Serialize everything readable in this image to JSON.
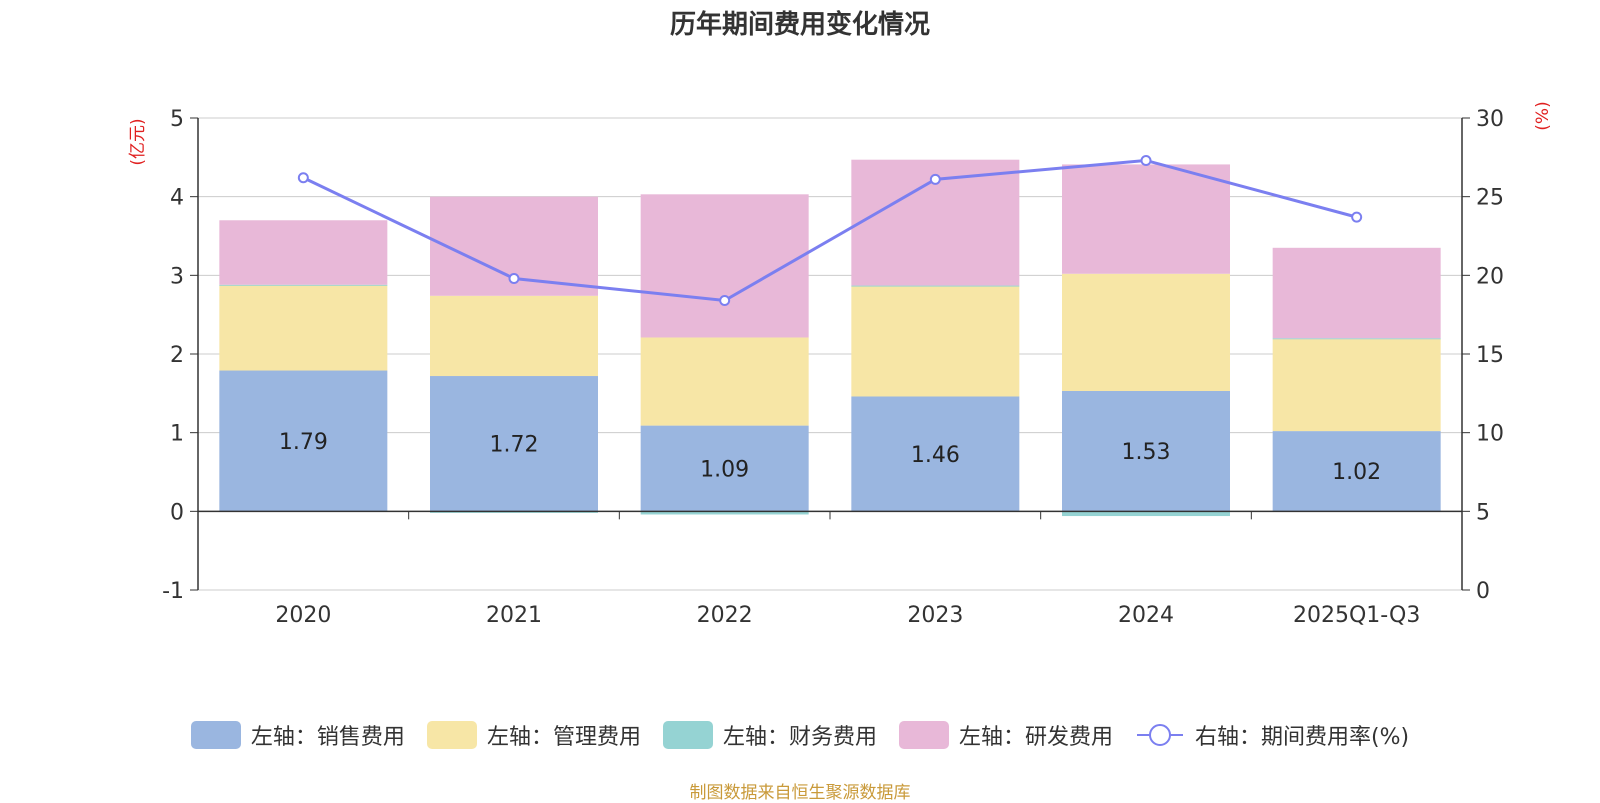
{
  "chart_data": {
    "type": "bar",
    "title": "历年期间费用变化情况",
    "categories": [
      "2020",
      "2021",
      "2022",
      "2023",
      "2024",
      "2025Q1-Q3"
    ],
    "stacked": true,
    "series": [
      {
        "name": "左轴：销售费用",
        "axis": "left",
        "color": "#9ab6e0",
        "values": [
          1.79,
          1.72,
          1.09,
          1.46,
          1.53,
          1.02
        ],
        "show_labels": true
      },
      {
        "name": "左轴：管理费用",
        "axis": "left",
        "color": "#f7e6a6",
        "values": [
          1.08,
          1.02,
          1.12,
          1.4,
          1.49,
          1.17
        ]
      },
      {
        "name": "左轴：财务费用",
        "axis": "left",
        "color": "#95d3d3",
        "values": [
          0.01,
          -0.02,
          -0.04,
          0.01,
          -0.06,
          0.01
        ]
      },
      {
        "name": "左轴：研发费用",
        "axis": "left",
        "color": "#e8b8d8",
        "values": [
          0.82,
          1.26,
          1.82,
          1.6,
          1.39,
          1.15
        ]
      },
      {
        "name": "右轴：期间费用率(%)",
        "axis": "right",
        "type": "line",
        "color": "#7b7ff0",
        "values": [
          26.2,
          19.8,
          18.4,
          26.1,
          27.3,
          23.7
        ]
      }
    ],
    "y_left": {
      "label": "(亿元)",
      "ticks": [
        "-1",
        "0",
        "1",
        "2",
        "3",
        "4",
        "5"
      ],
      "range": [
        -1,
        5
      ]
    },
    "y_right": {
      "label": "(%)",
      "ticks": [
        "0",
        "5",
        "10",
        "15",
        "20",
        "25",
        "30"
      ],
      "range": [
        0,
        30
      ]
    },
    "grid": true,
    "legend_position": "bottom"
  },
  "source_note": "制图数据来自恒生聚源数据库"
}
